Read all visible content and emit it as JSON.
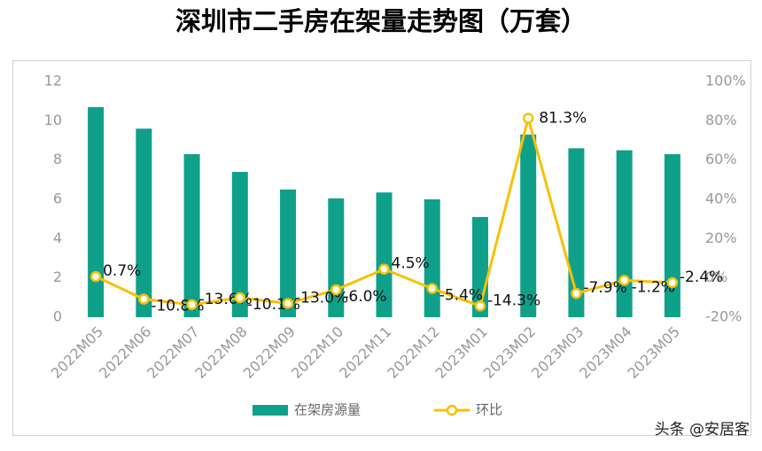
{
  "chart_data": {
    "type": "combo",
    "title": "深圳市二手房在架量走势图（万套）",
    "categories": [
      "2022M05",
      "2022M06",
      "2022M07",
      "2022M08",
      "2022M09",
      "2022M10",
      "2022M11",
      "2022M12",
      "2023M01",
      "2023M02",
      "2023M03",
      "2023M04",
      "2023M05"
    ],
    "series": [
      {
        "name": "在架房源量",
        "type": "bar",
        "color": "#0fa08a",
        "values": [
          10.7,
          9.6,
          8.3,
          7.4,
          6.5,
          6.05,
          6.35,
          6.0,
          5.1,
          9.3,
          8.6,
          8.5,
          8.3
        ]
      },
      {
        "name": "环比",
        "type": "line",
        "axis": "y2",
        "color": "#f7c100",
        "values": [
          0.7,
          -10.8,
          -13.6,
          -10.1,
          -13.0,
          -6.0,
          4.5,
          -5.4,
          -14.3,
          81.3,
          -7.9,
          -1.2,
          -2.4
        ],
        "value_labels": [
          "0.7%",
          "-10.8%",
          "-13.6%",
          "-10.1%",
          "-13.0%",
          "-6.0%",
          "4.5%",
          "-5.4%",
          "-14.3%",
          "81.3%",
          "-7.9%",
          "-1.2%",
          "-2.4%"
        ]
      }
    ],
    "ylim": [
      0,
      12
    ],
    "yticks": [
      0,
      2,
      4,
      6,
      8,
      10,
      12
    ],
    "y2lim": [
      -20,
      100
    ],
    "y2ticks": [
      {
        "value": -20,
        "label": "-20%"
      },
      {
        "value": 0,
        "label": "0%"
      },
      {
        "value": 20,
        "label": "20%"
      },
      {
        "value": 40,
        "label": "40%"
      },
      {
        "value": 60,
        "label": "60%"
      },
      {
        "value": 80,
        "label": "80%"
      },
      {
        "value": 100,
        "label": "100%"
      }
    ],
    "grid": false,
    "legend": "bottom"
  },
  "watermark": "头条 @安居客"
}
